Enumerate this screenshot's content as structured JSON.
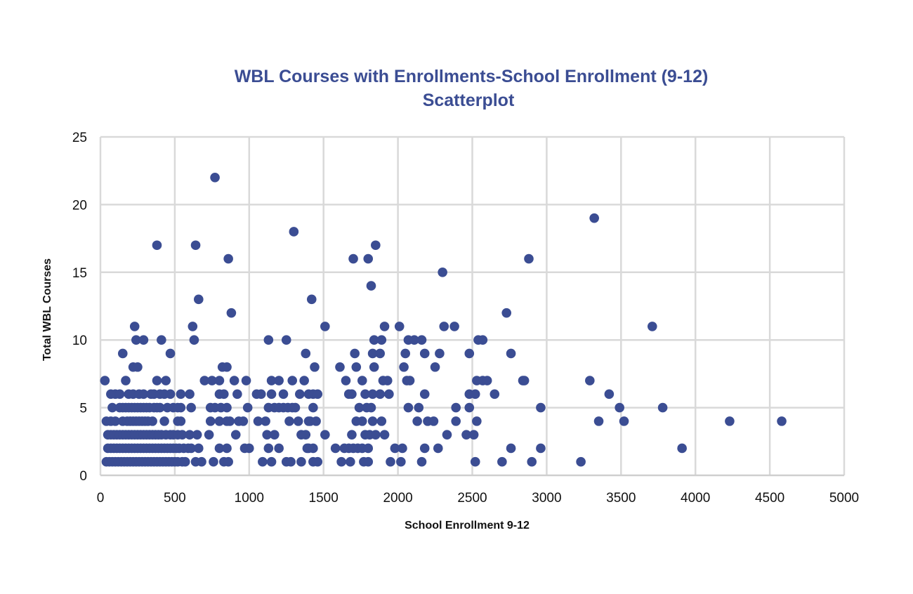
{
  "chart_data": {
    "type": "scatter",
    "title": [
      "WBL Courses with Enrollments-School Enrollment (9-12)",
      "Scatterplot"
    ],
    "xlabel": "School Enrollment 9-12",
    "ylabel": "Total WBL Courses",
    "xlim": [
      0,
      5000
    ],
    "ylim": [
      0,
      25
    ],
    "xticks": [
      0,
      500,
      1000,
      1500,
      2000,
      2500,
      3000,
      3500,
      4000,
      4500,
      5000
    ],
    "yticks": [
      0,
      5,
      10,
      15,
      20,
      25
    ],
    "grid": true,
    "legend": "none",
    "marker_color": "#3b4d93",
    "points": [
      [
        770,
        22
      ],
      [
        3320,
        19
      ],
      [
        1300,
        18
      ],
      [
        380,
        17
      ],
      [
        640,
        17
      ],
      [
        1850,
        17
      ],
      [
        860,
        16
      ],
      [
        1700,
        16
      ],
      [
        1800,
        16
      ],
      [
        2880,
        16
      ],
      [
        2300,
        15
      ],
      [
        1820,
        14
      ],
      [
        660,
        13
      ],
      [
        1420,
        13
      ],
      [
        880,
        12
      ],
      [
        2730,
        12
      ],
      [
        230,
        11
      ],
      [
        620,
        11
      ],
      [
        1510,
        11
      ],
      [
        1910,
        11
      ],
      [
        2010,
        11
      ],
      [
        2310,
        11
      ],
      [
        2380,
        11
      ],
      [
        3710,
        11
      ],
      [
        240,
        10
      ],
      [
        290,
        10
      ],
      [
        410,
        10
      ],
      [
        630,
        10
      ],
      [
        1130,
        10
      ],
      [
        1250,
        10
      ],
      [
        1840,
        10
      ],
      [
        1890,
        10
      ],
      [
        2070,
        10
      ],
      [
        2110,
        10
      ],
      [
        2160,
        10
      ],
      [
        2540,
        10
      ],
      [
        2570,
        10
      ],
      [
        150,
        9
      ],
      [
        470,
        9
      ],
      [
        1380,
        9
      ],
      [
        1710,
        9
      ],
      [
        1830,
        9
      ],
      [
        1880,
        9
      ],
      [
        2050,
        9
      ],
      [
        2180,
        9
      ],
      [
        2280,
        9
      ],
      [
        2480,
        9
      ],
      [
        2760,
        9
      ],
      [
        220,
        8
      ],
      [
        250,
        8
      ],
      [
        820,
        8
      ],
      [
        850,
        8
      ],
      [
        1440,
        8
      ],
      [
        1610,
        8
      ],
      [
        1720,
        8
      ],
      [
        1840,
        8
      ],
      [
        2040,
        8
      ],
      [
        2250,
        8
      ],
      [
        30,
        7
      ],
      [
        170,
        7
      ],
      [
        380,
        7
      ],
      [
        440,
        7
      ],
      [
        700,
        7
      ],
      [
        750,
        7
      ],
      [
        800,
        7
      ],
      [
        900,
        7
      ],
      [
        980,
        7
      ],
      [
        1150,
        7
      ],
      [
        1200,
        7
      ],
      [
        1290,
        7
      ],
      [
        1370,
        7
      ],
      [
        1650,
        7
      ],
      [
        1760,
        7
      ],
      [
        1900,
        7
      ],
      [
        1930,
        7
      ],
      [
        2060,
        7
      ],
      [
        2080,
        7
      ],
      [
        2530,
        7
      ],
      [
        2570,
        7
      ],
      [
        2600,
        7
      ],
      [
        2840,
        7
      ],
      [
        2850,
        7
      ],
      [
        3290,
        7
      ],
      [
        70,
        6
      ],
      [
        100,
        6
      ],
      [
        130,
        6
      ],
      [
        190,
        6
      ],
      [
        220,
        6
      ],
      [
        260,
        6
      ],
      [
        290,
        6
      ],
      [
        340,
        6
      ],
      [
        360,
        6
      ],
      [
        400,
        6
      ],
      [
        430,
        6
      ],
      [
        470,
        6
      ],
      [
        540,
        6
      ],
      [
        600,
        6
      ],
      [
        800,
        6
      ],
      [
        830,
        6
      ],
      [
        920,
        6
      ],
      [
        1050,
        6
      ],
      [
        1080,
        6
      ],
      [
        1150,
        6
      ],
      [
        1230,
        6
      ],
      [
        1340,
        6
      ],
      [
        1400,
        6
      ],
      [
        1430,
        6
      ],
      [
        1460,
        6
      ],
      [
        1670,
        6
      ],
      [
        1690,
        6
      ],
      [
        1780,
        6
      ],
      [
        1830,
        6
      ],
      [
        1880,
        6
      ],
      [
        1940,
        6
      ],
      [
        2180,
        6
      ],
      [
        2480,
        6
      ],
      [
        2520,
        6
      ],
      [
        2650,
        6
      ],
      [
        3420,
        6
      ],
      [
        80,
        5
      ],
      [
        130,
        5
      ],
      [
        150,
        5
      ],
      [
        170,
        5
      ],
      [
        190,
        5
      ],
      [
        210,
        5
      ],
      [
        230,
        5
      ],
      [
        250,
        5
      ],
      [
        270,
        5
      ],
      [
        290,
        5
      ],
      [
        310,
        5
      ],
      [
        330,
        5
      ],
      [
        360,
        5
      ],
      [
        380,
        5
      ],
      [
        400,
        5
      ],
      [
        450,
        5
      ],
      [
        490,
        5
      ],
      [
        520,
        5
      ],
      [
        540,
        5
      ],
      [
        610,
        5
      ],
      [
        740,
        5
      ],
      [
        770,
        5
      ],
      [
        810,
        5
      ],
      [
        850,
        5
      ],
      [
        990,
        5
      ],
      [
        1130,
        5
      ],
      [
        1170,
        5
      ],
      [
        1200,
        5
      ],
      [
        1230,
        5
      ],
      [
        1260,
        5
      ],
      [
        1290,
        5
      ],
      [
        1310,
        5
      ],
      [
        1430,
        5
      ],
      [
        1740,
        5
      ],
      [
        1790,
        5
      ],
      [
        1820,
        5
      ],
      [
        2070,
        5
      ],
      [
        2140,
        5
      ],
      [
        2390,
        5
      ],
      [
        2480,
        5
      ],
      [
        2960,
        5
      ],
      [
        3490,
        5
      ],
      [
        3780,
        5
      ],
      [
        40,
        4
      ],
      [
        70,
        4
      ],
      [
        100,
        4
      ],
      [
        150,
        4
      ],
      [
        180,
        4
      ],
      [
        200,
        4
      ],
      [
        220,
        4
      ],
      [
        240,
        4
      ],
      [
        260,
        4
      ],
      [
        280,
        4
      ],
      [
        300,
        4
      ],
      [
        320,
        4
      ],
      [
        350,
        4
      ],
      [
        430,
        4
      ],
      [
        520,
        4
      ],
      [
        540,
        4
      ],
      [
        740,
        4
      ],
      [
        800,
        4
      ],
      [
        850,
        4
      ],
      [
        870,
        4
      ],
      [
        930,
        4
      ],
      [
        960,
        4
      ],
      [
        1060,
        4
      ],
      [
        1110,
        4
      ],
      [
        1270,
        4
      ],
      [
        1330,
        4
      ],
      [
        1400,
        4
      ],
      [
        1410,
        4
      ],
      [
        1450,
        4
      ],
      [
        1720,
        4
      ],
      [
        1760,
        4
      ],
      [
        1830,
        4
      ],
      [
        1890,
        4
      ],
      [
        2130,
        4
      ],
      [
        2200,
        4
      ],
      [
        2240,
        4
      ],
      [
        2390,
        4
      ],
      [
        2530,
        4
      ],
      [
        3350,
        4
      ],
      [
        3520,
        4
      ],
      [
        4230,
        4
      ],
      [
        4580,
        4
      ],
      [
        50,
        3
      ],
      [
        70,
        3
      ],
      [
        90,
        3
      ],
      [
        110,
        3
      ],
      [
        130,
        3
      ],
      [
        150,
        3
      ],
      [
        170,
        3
      ],
      [
        190,
        3
      ],
      [
        210,
        3
      ],
      [
        230,
        3
      ],
      [
        250,
        3
      ],
      [
        270,
        3
      ],
      [
        290,
        3
      ],
      [
        310,
        3
      ],
      [
        330,
        3
      ],
      [
        350,
        3
      ],
      [
        370,
        3
      ],
      [
        390,
        3
      ],
      [
        410,
        3
      ],
      [
        440,
        3
      ],
      [
        470,
        3
      ],
      [
        490,
        3
      ],
      [
        520,
        3
      ],
      [
        550,
        3
      ],
      [
        600,
        3
      ],
      [
        650,
        3
      ],
      [
        730,
        3
      ],
      [
        910,
        3
      ],
      [
        1120,
        3
      ],
      [
        1170,
        3
      ],
      [
        1350,
        3
      ],
      [
        1380,
        3
      ],
      [
        1510,
        3
      ],
      [
        1690,
        3
      ],
      [
        1780,
        3
      ],
      [
        1810,
        3
      ],
      [
        1850,
        3
      ],
      [
        1910,
        3
      ],
      [
        2330,
        3
      ],
      [
        2460,
        3
      ],
      [
        2510,
        3
      ],
      [
        50,
        2
      ],
      [
        70,
        2
      ],
      [
        90,
        2
      ],
      [
        110,
        2
      ],
      [
        130,
        2
      ],
      [
        150,
        2
      ],
      [
        170,
        2
      ],
      [
        190,
        2
      ],
      [
        210,
        2
      ],
      [
        230,
        2
      ],
      [
        250,
        2
      ],
      [
        270,
        2
      ],
      [
        290,
        2
      ],
      [
        310,
        2
      ],
      [
        330,
        2
      ],
      [
        350,
        2
      ],
      [
        370,
        2
      ],
      [
        390,
        2
      ],
      [
        410,
        2
      ],
      [
        430,
        2
      ],
      [
        450,
        2
      ],
      [
        470,
        2
      ],
      [
        490,
        2
      ],
      [
        510,
        2
      ],
      [
        530,
        2
      ],
      [
        560,
        2
      ],
      [
        590,
        2
      ],
      [
        610,
        2
      ],
      [
        660,
        2
      ],
      [
        800,
        2
      ],
      [
        850,
        2
      ],
      [
        970,
        2
      ],
      [
        1000,
        2
      ],
      [
        1130,
        2
      ],
      [
        1200,
        2
      ],
      [
        1390,
        2
      ],
      [
        1400,
        2
      ],
      [
        1430,
        2
      ],
      [
        1580,
        2
      ],
      [
        1640,
        2
      ],
      [
        1670,
        2
      ],
      [
        1700,
        2
      ],
      [
        1730,
        2
      ],
      [
        1760,
        2
      ],
      [
        1800,
        2
      ],
      [
        1980,
        2
      ],
      [
        2030,
        2
      ],
      [
        2180,
        2
      ],
      [
        2270,
        2
      ],
      [
        2760,
        2
      ],
      [
        2960,
        2
      ],
      [
        3910,
        2
      ],
      [
        40,
        1
      ],
      [
        60,
        1
      ],
      [
        80,
        1
      ],
      [
        100,
        1
      ],
      [
        120,
        1
      ],
      [
        140,
        1
      ],
      [
        160,
        1
      ],
      [
        180,
        1
      ],
      [
        200,
        1
      ],
      [
        220,
        1
      ],
      [
        240,
        1
      ],
      [
        260,
        1
      ],
      [
        280,
        1
      ],
      [
        300,
        1
      ],
      [
        320,
        1
      ],
      [
        340,
        1
      ],
      [
        360,
        1
      ],
      [
        380,
        1
      ],
      [
        400,
        1
      ],
      [
        420,
        1
      ],
      [
        440,
        1
      ],
      [
        460,
        1
      ],
      [
        480,
        1
      ],
      [
        500,
        1
      ],
      [
        520,
        1
      ],
      [
        550,
        1
      ],
      [
        570,
        1
      ],
      [
        640,
        1
      ],
      [
        680,
        1
      ],
      [
        760,
        1
      ],
      [
        830,
        1
      ],
      [
        860,
        1
      ],
      [
        1090,
        1
      ],
      [
        1150,
        1
      ],
      [
        1250,
        1
      ],
      [
        1280,
        1
      ],
      [
        1350,
        1
      ],
      [
        1430,
        1
      ],
      [
        1460,
        1
      ],
      [
        1620,
        1
      ],
      [
        1680,
        1
      ],
      [
        1770,
        1
      ],
      [
        1800,
        1
      ],
      [
        1950,
        1
      ],
      [
        2020,
        1
      ],
      [
        2160,
        1
      ],
      [
        2520,
        1
      ],
      [
        2700,
        1
      ],
      [
        2900,
        1
      ],
      [
        3230,
        1
      ]
    ]
  }
}
